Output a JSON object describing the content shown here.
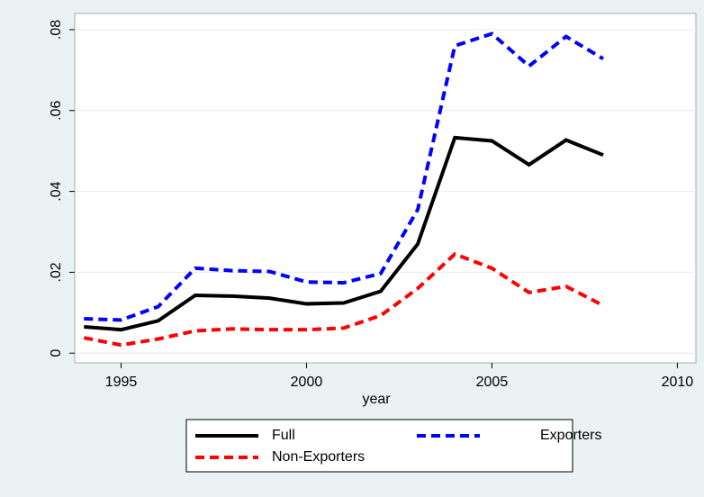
{
  "chart_data": {
    "type": "line",
    "x_label": "year",
    "x": [
      1994,
      1995,
      1996,
      1997,
      1998,
      1999,
      2000,
      2001,
      2002,
      2003,
      2004,
      2005,
      2006,
      2007,
      2008
    ],
    "series": [
      {
        "name": "Full",
        "color": "#000000",
        "line_style": "solid",
        "values": [
          0.0065,
          0.0058,
          0.008,
          0.0143,
          0.0141,
          0.0136,
          0.0122,
          0.0124,
          0.0153,
          0.027,
          0.0533,
          0.0525,
          0.0466,
          0.0527,
          0.049
        ]
      },
      {
        "name": "Exporters",
        "color": "#0000ff",
        "line_style": "dashed",
        "values": [
          0.0085,
          0.0082,
          0.0115,
          0.021,
          0.0204,
          0.0202,
          0.0176,
          0.0174,
          0.0197,
          0.0355,
          0.076,
          0.079,
          0.071,
          0.0783,
          0.0728
        ]
      },
      {
        "name": "Non-Exporters",
        "color": "#ff0000",
        "line_style": "dashed",
        "values": [
          0.0038,
          0.002,
          0.0035,
          0.0055,
          0.006,
          0.0058,
          0.0058,
          0.0062,
          0.0093,
          0.016,
          0.0245,
          0.021,
          0.015,
          0.0165,
          0.0118
        ]
      }
    ],
    "xlim": [
      1993.75,
      2010.5
    ],
    "xticks": [
      1995,
      2000,
      2005,
      2010
    ],
    "ylim": [
      -0.0024,
      0.084
    ],
    "yticks": [
      0,
      {
        "value": 0.02,
        "label": ".02"
      },
      {
        "value": 0.04,
        "label": ".04"
      },
      {
        "value": 0.06,
        "label": ".06"
      },
      {
        "value": 0.08,
        "label": ".08"
      }
    ],
    "grid": true,
    "legend": "bottom"
  }
}
